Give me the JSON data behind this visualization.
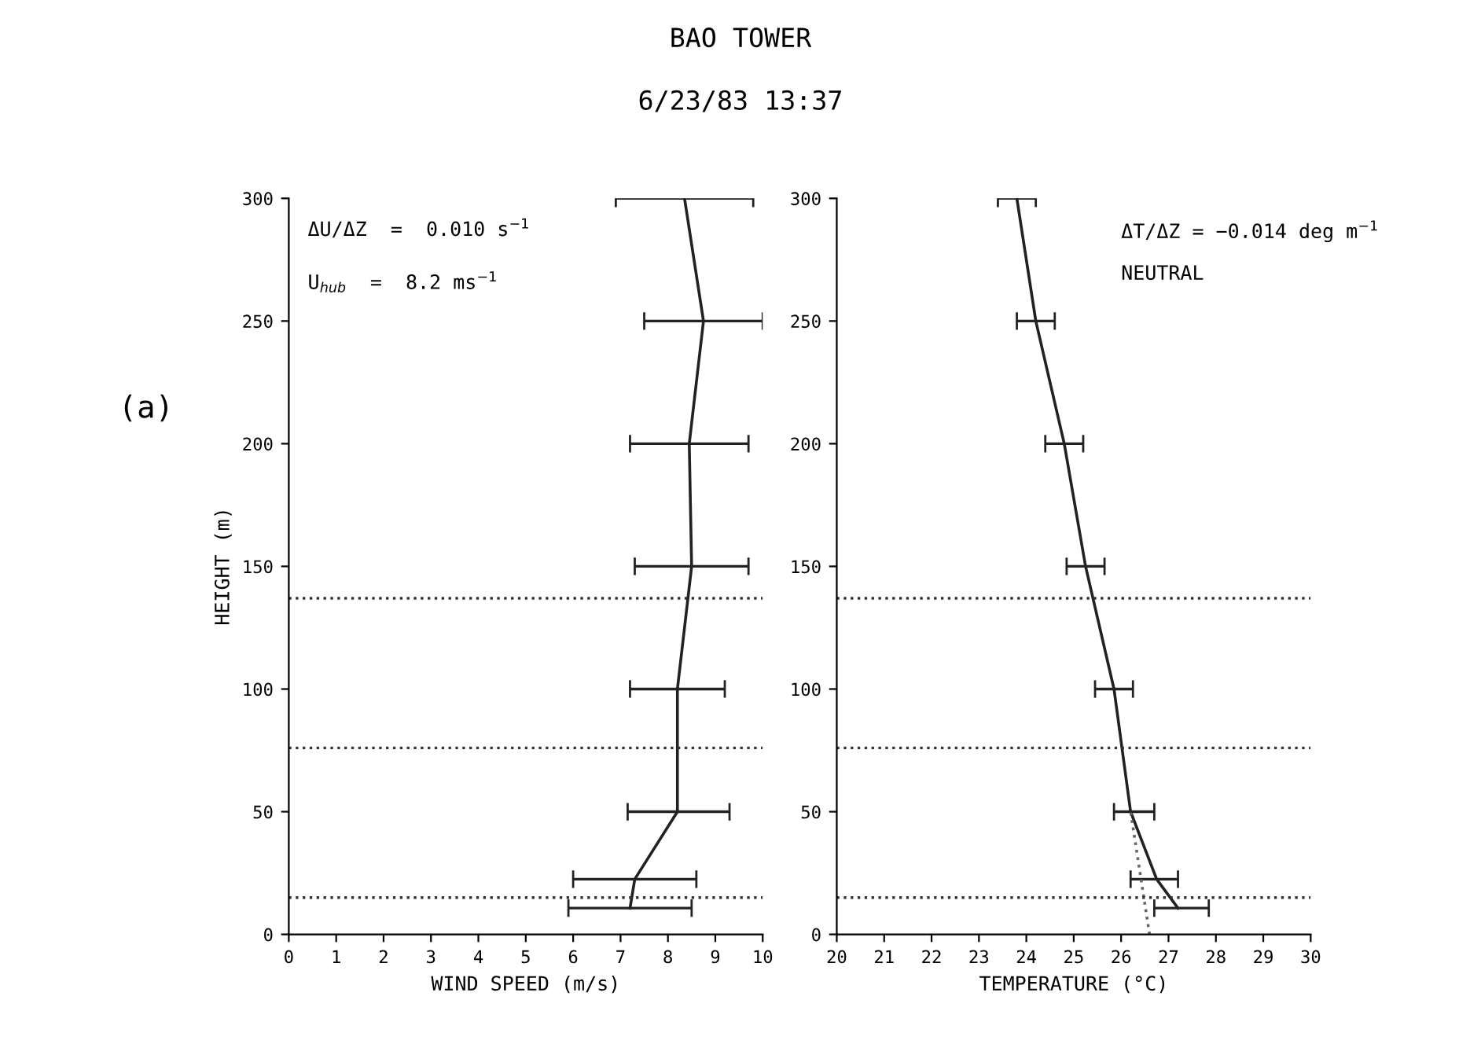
{
  "chart_data": [
    {
      "type": "line",
      "title": "BAO TOWER",
      "subtitle": "6/23/83 13:37",
      "xlabel": "WIND SPEED (m/s)",
      "ylabel": "HEIGHT (m)",
      "annotations": [
        "ΔU/ΔZ  =  0.010 s$^{−1}$",
        "U$_{hub}$  =  8.2 ms$^{−1}$",
        "(a)"
      ],
      "series": [
        {
          "color": "#222222",
          "x": [
            7.2,
            7.3,
            8.2,
            8.2,
            8.5,
            8.45,
            8.75,
            8.35
          ],
          "values": [
            10.7,
            22.5,
            50,
            100,
            150,
            200,
            250,
            300
          ],
          "xerrors": [
            [
              5.9,
              8.5
            ],
            [
              6.0,
              8.6
            ],
            [
              7.15,
              9.3
            ],
            [
              7.2,
              9.2
            ],
            [
              7.3,
              9.7
            ],
            [
              7.2,
              9.7
            ],
            [
              7.5,
              10.0
            ],
            [
              6.9,
              9.8
            ]
          ]
        }
      ],
      "xlim": [
        0,
        10
      ],
      "xticks": [
        0,
        1,
        2,
        3,
        4,
        5,
        6,
        7,
        8,
        9,
        10
      ],
      "ylim": [
        0,
        300
      ],
      "yticks": [
        0,
        50,
        100,
        150,
        200,
        250,
        300
      ],
      "ref_lines": [
        {
          "axis": "y",
          "value": 137,
          "color": "#333333",
          "line_style": "dotted"
        },
        {
          "axis": "y",
          "value": 76,
          "color": "#333333",
          "line_style": "dotted"
        },
        {
          "axis": "y",
          "value": 15,
          "color": "#333333",
          "line_style": "dotted"
        }
      ],
      "grid": false,
      "marker": "none",
      "line_style": "solid"
    },
    {
      "type": "line",
      "xlabel": "TEMPERATURE (°C)",
      "annotations": [
        "ΔT/ΔZ = −0.014 deg m$^{−1}$",
        "NEUTRAL"
      ],
      "series": [
        {
          "color": "#222222",
          "x": [
            27.2,
            26.75,
            26.2,
            25.85,
            25.25,
            24.8,
            24.2,
            23.8
          ],
          "values": [
            10.7,
            22.5,
            50,
            100,
            150,
            200,
            250,
            300
          ],
          "xerrors": [
            [
              26.7,
              27.85
            ],
            [
              26.2,
              27.2
            ],
            [
              25.85,
              26.7
            ],
            [
              25.45,
              26.25
            ],
            [
              24.85,
              25.65
            ],
            [
              24.4,
              25.2
            ],
            [
              23.8,
              24.6
            ],
            [
              23.4,
              24.2
            ]
          ]
        },
        {
          "color": "#666666",
          "line_style": "dotted",
          "x": [
            26.6,
            26.2
          ],
          "values": [
            0,
            50
          ]
        }
      ],
      "xlim": [
        20,
        30
      ],
      "xticks": [
        20,
        21,
        22,
        23,
        24,
        25,
        26,
        27,
        28,
        29,
        30
      ],
      "ylim": [
        0,
        300
      ],
      "yticks": [
        0,
        50,
        100,
        150,
        200,
        250,
        300
      ],
      "ref_lines": [
        {
          "axis": "y",
          "value": 137,
          "color": "#333333",
          "line_style": "dotted"
        },
        {
          "axis": "y",
          "value": 76,
          "color": "#333333",
          "line_style": "dotted"
        },
        {
          "axis": "y",
          "value": 15,
          "color": "#333333",
          "line_style": "dotted"
        }
      ],
      "grid": false,
      "marker": "none",
      "line_style": "solid"
    }
  ]
}
